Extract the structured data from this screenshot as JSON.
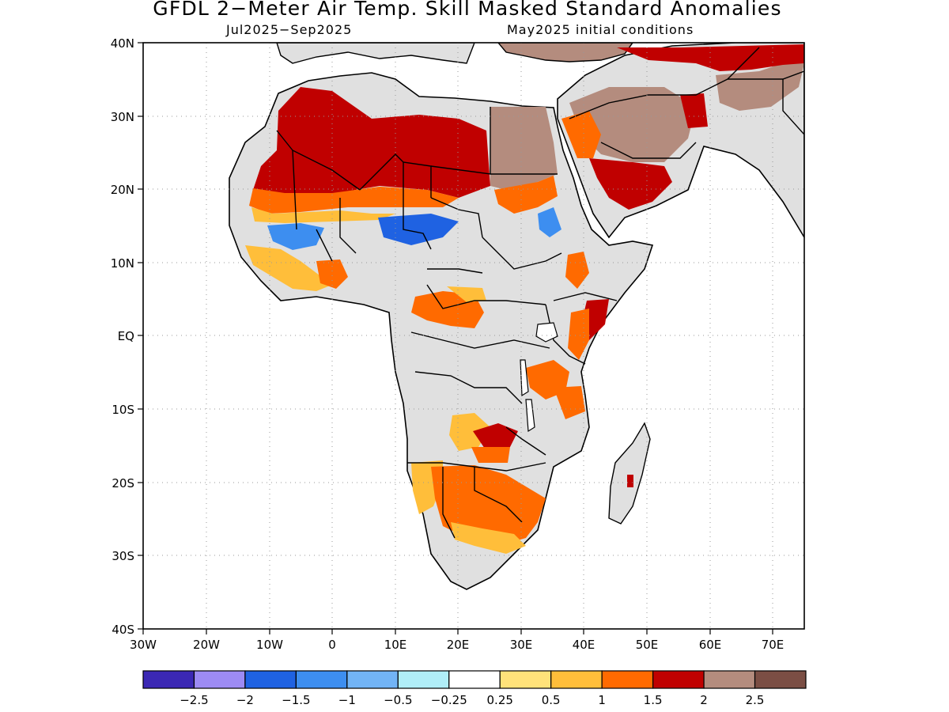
{
  "title": "GFDL 2−Meter Air Temp. Skill Masked Standard Anomalies",
  "subtitle_left": "Jul2025−Sep2025",
  "subtitle_right": "May2025 initial conditions",
  "map": {
    "lat_labels": [
      "40N",
      "30N",
      "20N",
      "10N",
      "EQ",
      "10S",
      "20S",
      "30S",
      "40S"
    ],
    "lon_labels": [
      "30W",
      "20W",
      "10W",
      "0",
      "10E",
      "20E",
      "30E",
      "40E",
      "50E",
      "60E",
      "70E"
    ],
    "lat_range": [
      -40,
      40
    ],
    "lon_range": [
      -30,
      75
    ],
    "masked_color": "#e0e0e0",
    "gridlines": "dotted"
  },
  "colorbar": {
    "colors": [
      "#3b28b4",
      "#9d8bf4",
      "#1f62e2",
      "#3d8ef0",
      "#72b4f6",
      "#b0eef8",
      "#ffffff",
      "#ffe27a",
      "#ffbe3a",
      "#ff6a00",
      "#c00000",
      "#b48c7e",
      "#7b4e44"
    ],
    "tick_labels": [
      "−2.5",
      "−2",
      "−1.5",
      "−1",
      "−0.5",
      "−0.25",
      "0.25",
      "0.5",
      "1",
      "1.5",
      "2",
      "2.5"
    ]
  }
}
